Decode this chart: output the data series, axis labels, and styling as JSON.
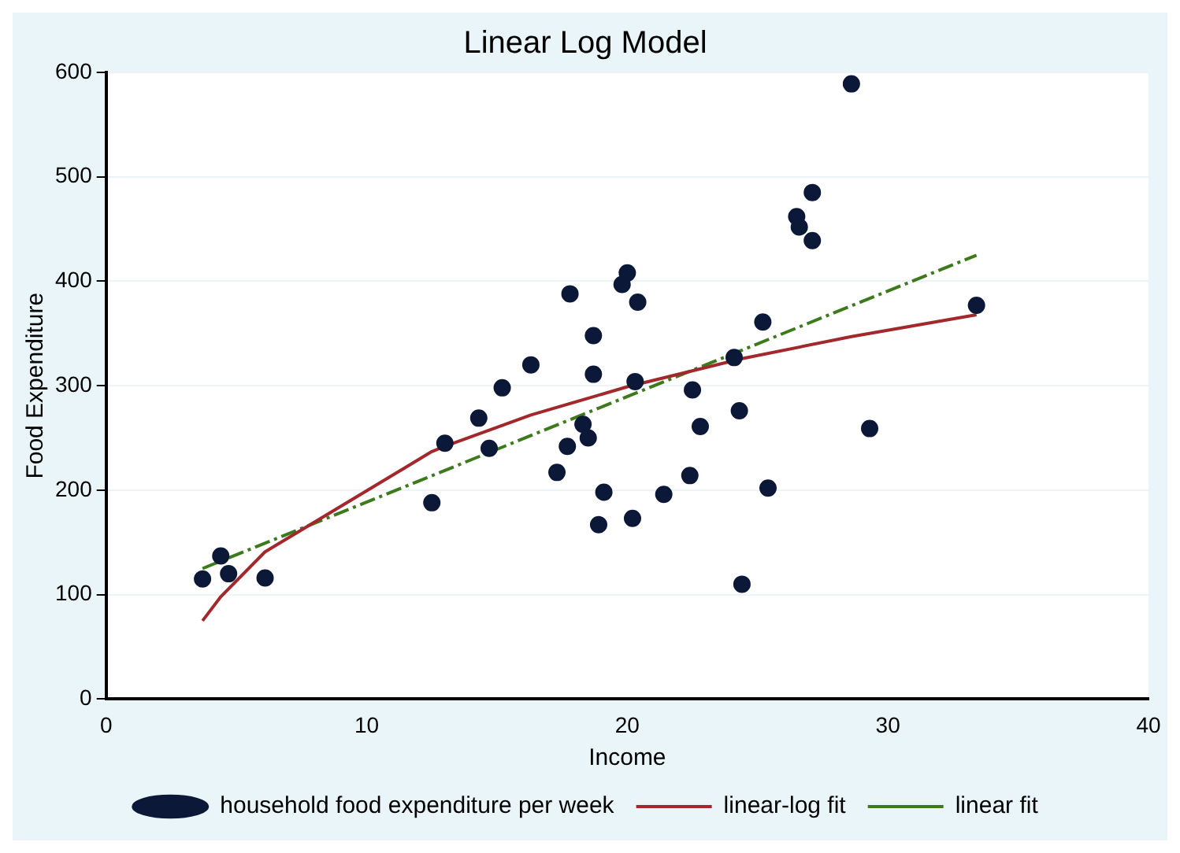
{
  "chart_data": {
    "type": "scatter",
    "title": "Linear Log Model",
    "xlabel": "Income",
    "ylabel": "Food Expenditure",
    "xlim": [
      0,
      40
    ],
    "xticks": [
      0,
      10,
      20,
      30,
      40
    ],
    "ylim": [
      0,
      600
    ],
    "yticks": [
      0,
      100,
      200,
      300,
      400,
      500,
      600
    ],
    "grid": "y",
    "legend": "bottom",
    "series": [
      {
        "name": "household food expenditure per week",
        "type": "scatter",
        "marker": "circle",
        "color": "#0b1838",
        "x": [
          3.7,
          4.4,
          4.7,
          6.1,
          12.5,
          13.0,
          14.3,
          14.7,
          15.2,
          16.3,
          17.3,
          17.7,
          17.8,
          18.3,
          18.5,
          18.7,
          18.7,
          18.9,
          19.1,
          19.8,
          20.0,
          20.2,
          20.3,
          20.4,
          21.4,
          22.4,
          22.5,
          22.8,
          24.1,
          24.3,
          24.4,
          25.2,
          25.4,
          26.5,
          26.6,
          27.1,
          27.1,
          28.6,
          29.3,
          33.4
        ],
        "values": [
          115,
          137,
          120,
          116,
          188,
          245,
          269,
          240,
          298,
          320,
          217,
          242,
          388,
          263,
          250,
          348,
          311,
          167,
          198,
          397,
          408,
          173,
          304,
          380,
          196,
          214,
          296,
          261,
          327,
          276,
          110,
          361,
          202,
          462,
          452,
          485,
          439,
          589,
          259,
          377
        ]
      },
      {
        "name": "linear-log fit",
        "type": "line",
        "marker": "none",
        "line_style": "solid",
        "color": "#a3282c",
        "x": [
          3.7,
          4.4,
          6.1,
          12.5,
          13.0,
          16.3,
          20.0,
          24.4,
          28.6,
          33.4
        ],
        "values": [
          75,
          98,
          141,
          237,
          242,
          272,
          299,
          326,
          347,
          368
        ]
      },
      {
        "name": "linear fit",
        "type": "line",
        "marker": "none",
        "line_style": "dashed",
        "color": "#3d7a1c",
        "x": [
          3.7,
          33.4
        ],
        "values": [
          125,
          425
        ]
      }
    ]
  }
}
